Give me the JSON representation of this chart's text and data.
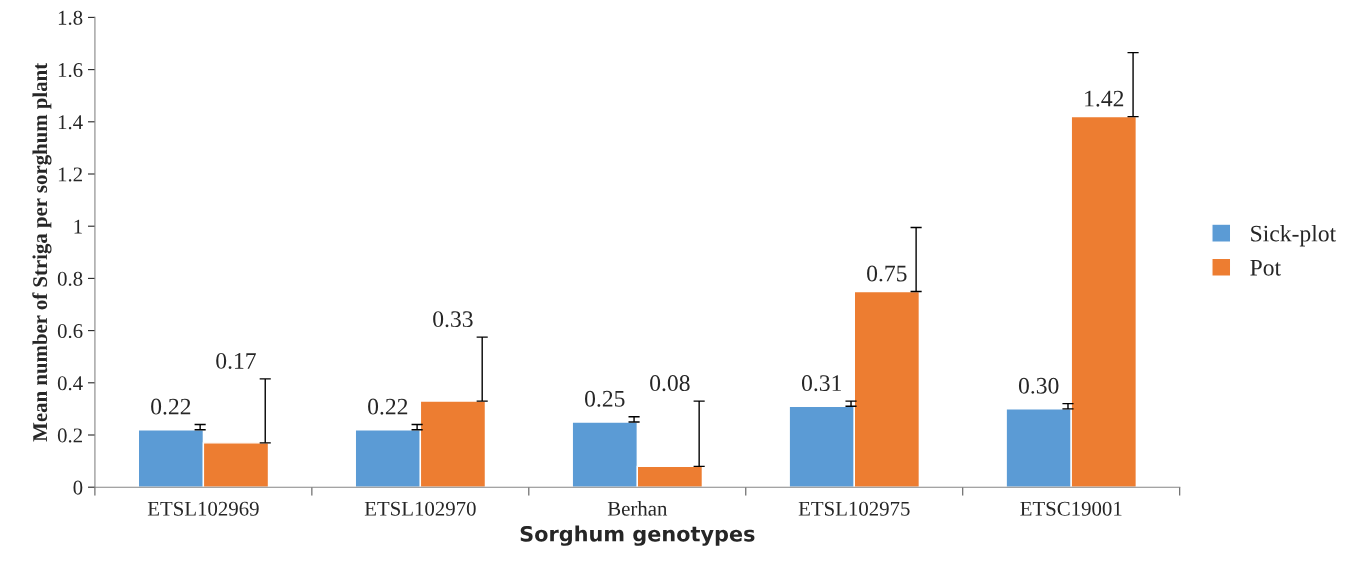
{
  "chart_data": {
    "type": "bar",
    "xlabel": "Sorghum genotypes",
    "ylabel": "Mean number of Striga per sorghum plant",
    "categories": [
      "ETSL102969",
      "ETSL102970",
      "Berhan",
      "ETSL102975",
      "ETSC19001"
    ],
    "series": [
      {
        "name": "Sick-plot",
        "color": "#5b9bd5",
        "values": [
          0.22,
          0.22,
          0.25,
          0.31,
          0.3
        ],
        "errors": [
          [
            0.22,
            0.24
          ],
          [
            0.22,
            0.24
          ],
          [
            0.25,
            0.27
          ],
          [
            0.31,
            0.33
          ],
          [
            0.3,
            0.32
          ]
        ],
        "value_labels": [
          "0.22",
          "0.22",
          "0.25",
          "0.31",
          "0.30"
        ]
      },
      {
        "name": "Pot",
        "color": "#ed7d31",
        "values": [
          0.17,
          0.33,
          0.08,
          0.75,
          1.42
        ],
        "errors": [
          [
            0.17,
            0.415
          ],
          [
            0.33,
            0.575
          ],
          [
            0.08,
            0.33
          ],
          [
            0.75,
            0.995
          ],
          [
            1.42,
            1.665
          ]
        ],
        "value_labels": [
          "0.17",
          "0.33",
          "0.08",
          "0.75",
          "1.42"
        ]
      }
    ],
    "ylim": [
      0,
      1.8
    ],
    "yticks": [
      0,
      {
        "value": 0.2,
        "label": "0.2"
      },
      {
        "value": 0.4,
        "label": "0.4"
      },
      {
        "value": 0.6,
        "label": "0.6"
      },
      {
        "value": 0.8,
        "label": "0.8"
      },
      1,
      {
        "value": 1.2,
        "label": "1.2"
      },
      {
        "value": 1.4,
        "label": "1.4"
      },
      {
        "value": 1.6,
        "label": "1.6"
      },
      {
        "value": 1.8,
        "label": "1.8"
      }
    ],
    "grid": false,
    "legend": "right"
  }
}
